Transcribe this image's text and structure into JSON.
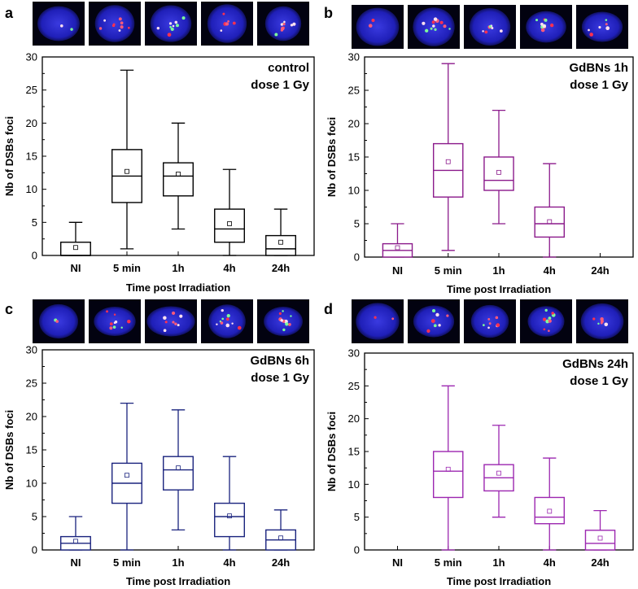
{
  "chart_data": [
    {
      "panel": "a",
      "type": "box",
      "annotation": [
        "control",
        "dose 1 Gy"
      ],
      "xlabel": "Time post Irradiation",
      "ylabel": "Nb of DSBs foci",
      "ylim": [
        0,
        30
      ],
      "yticks": [
        0,
        5,
        10,
        15,
        20,
        25,
        30
      ],
      "color": "#000000",
      "categories": [
        "NI",
        "5 min",
        "1h",
        "4h",
        "24h"
      ],
      "boxes": [
        {
          "min": 0,
          "q1": 0,
          "median": 0,
          "q3": 2,
          "max": 5,
          "mean": 1.2
        },
        {
          "min": 1,
          "q1": 8,
          "median": 12,
          "q3": 16,
          "max": 28,
          "mean": 12.7
        },
        {
          "min": 4,
          "q1": 9,
          "median": 12,
          "q3": 14,
          "max": 20,
          "mean": 12.3
        },
        {
          "min": 0,
          "q1": 2,
          "median": 4,
          "q3": 7,
          "max": 13,
          "mean": 4.8
        },
        {
          "min": 0,
          "q1": 0,
          "median": 1,
          "q3": 3,
          "max": 7,
          "mean": 2.0
        }
      ]
    },
    {
      "panel": "b",
      "type": "box",
      "annotation": [
        "GdBNs 1h",
        "dose 1 Gy"
      ],
      "xlabel": "Time post Irradiation",
      "ylabel": "Nb of DSBs foci",
      "ylim": [
        0,
        30
      ],
      "yticks": [
        0,
        5,
        10,
        15,
        20,
        25,
        30
      ],
      "color": "#8b1a8b",
      "categories": [
        "NI",
        "5 min",
        "1h",
        "4h",
        "24h"
      ],
      "boxes": [
        {
          "min": 0,
          "q1": 0,
          "median": 1,
          "q3": 2,
          "max": 5,
          "mean": 1.4
        },
        {
          "min": 1,
          "q1": 9,
          "median": 13,
          "q3": 17,
          "max": 29,
          "mean": 14.3
        },
        {
          "min": 5,
          "q1": 10,
          "median": 11.5,
          "q3": 15,
          "max": 22,
          "mean": 12.7
        },
        {
          "min": 0,
          "q1": 3,
          "median": 5,
          "q3": 7.5,
          "max": 14,
          "mean": 5.3
        },
        null
      ]
    },
    {
      "panel": "c",
      "type": "box",
      "annotation": [
        "GdBNs 6h",
        "dose 1 Gy"
      ],
      "xlabel": "Time post Irradiation",
      "ylabel": "Nb of DSBs foci",
      "ylim": [
        0,
        30
      ],
      "yticks": [
        0,
        5,
        10,
        15,
        20,
        25,
        30
      ],
      "color": "#1a237e",
      "categories": [
        "NI",
        "5 min",
        "1h",
        "4h",
        "24h"
      ],
      "boxes": [
        {
          "min": 0,
          "q1": 0,
          "median": 1,
          "q3": 2,
          "max": 5,
          "mean": 1.3
        },
        {
          "min": 0,
          "q1": 7,
          "median": 10,
          "q3": 13,
          "max": 22,
          "mean": 11.2
        },
        {
          "min": 3,
          "q1": 9,
          "median": 12,
          "q3": 14,
          "max": 21,
          "mean": 12.3
        },
        {
          "min": 0,
          "q1": 2,
          "median": 5,
          "q3": 7,
          "max": 14,
          "mean": 5.1
        },
        {
          "min": 0,
          "q1": 0,
          "median": 1.5,
          "q3": 3,
          "max": 6,
          "mean": 1.8
        }
      ]
    },
    {
      "panel": "d",
      "type": "box",
      "annotation": [
        "GdBNs 24h",
        "dose 1 Gy"
      ],
      "xlabel": "Time post Irradiation",
      "ylabel": "Nb of DSBs foci",
      "ylim": [
        0,
        30
      ],
      "yticks": [
        0,
        5,
        10,
        15,
        20,
        25,
        30
      ],
      "color": "#9c27b0",
      "categories": [
        "NI",
        "5 min",
        "1h",
        "4h",
        "24h"
      ],
      "boxes": [
        null,
        {
          "min": 0,
          "q1": 8,
          "median": 12,
          "q3": 15,
          "max": 25,
          "mean": 12.3
        },
        {
          "min": 5,
          "q1": 9,
          "median": 11,
          "q3": 13,
          "max": 19,
          "mean": 11.7
        },
        {
          "min": 0,
          "q1": 4,
          "median": 5,
          "q3": 8,
          "max": 14,
          "mean": 5.9
        },
        {
          "min": 0,
          "q1": 0,
          "median": 1,
          "q3": 3,
          "max": 6,
          "mean": 1.8
        }
      ]
    }
  ]
}
